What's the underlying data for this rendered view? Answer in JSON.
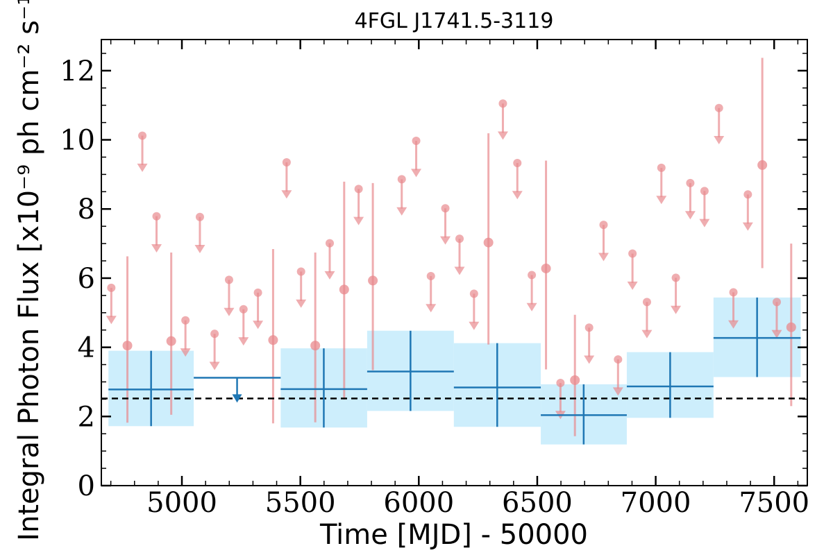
{
  "chart_data": {
    "type": "scatter",
    "title": "4FGL J1741.5-3119",
    "xlabel": "Time [MJD] - 50000",
    "ylabel": "Integral Photon Flux [x10⁻⁹ ph cm⁻² s⁻¹]",
    "xlim": [
      4660,
      7640
    ],
    "ylim": [
      0,
      12.9
    ],
    "x_ticks": [
      5000,
      5500,
      6000,
      6500,
      7000,
      7500
    ],
    "x_tick_labels": [
      "5000",
      "5500",
      "6000",
      "6500",
      "7000",
      "7500"
    ],
    "y_ticks": [
      0,
      2,
      4,
      6,
      8,
      10,
      12
    ],
    "y_tick_labels": [
      "0",
      "2",
      "4",
      "6",
      "8",
      "10",
      "12"
    ],
    "grid": false,
    "reference_line": {
      "y": 2.52,
      "style": "dashed",
      "color": "#000000"
    },
    "colors": {
      "fine": "#e88a8e",
      "coarse": "#1f77b4",
      "band": "#cdeefc"
    },
    "series": [
      {
        "bin": "fine",
        "upper_limits": [
          {
            "x": 4702,
            "y": 5.72
          },
          {
            "x": 4833,
            "y": 10.12
          },
          {
            "x": 4893,
            "y": 7.79
          },
          {
            "x": 5015,
            "y": 4.78
          },
          {
            "x": 5076,
            "y": 7.77
          },
          {
            "x": 5138,
            "y": 4.39
          },
          {
            "x": 5199,
            "y": 5.95
          },
          {
            "x": 5260,
            "y": 5.1
          },
          {
            "x": 5321,
            "y": 5.58
          },
          {
            "x": 5442,
            "y": 9.35
          },
          {
            "x": 5503,
            "y": 6.19
          },
          {
            "x": 5624,
            "y": 7.01
          },
          {
            "x": 5746,
            "y": 8.58
          },
          {
            "x": 5928,
            "y": 8.86
          },
          {
            "x": 5989,
            "y": 9.97
          },
          {
            "x": 6051,
            "y": 6.06
          },
          {
            "x": 6112,
            "y": 8.02
          },
          {
            "x": 6172,
            "y": 7.14
          },
          {
            "x": 6233,
            "y": 5.55
          },
          {
            "x": 6355,
            "y": 11.05
          },
          {
            "x": 6416,
            "y": 9.33
          },
          {
            "x": 6477,
            "y": 6.09
          },
          {
            "x": 6598,
            "y": 2.97
          },
          {
            "x": 6719,
            "y": 4.57
          },
          {
            "x": 6780,
            "y": 7.54
          },
          {
            "x": 6841,
            "y": 3.65
          },
          {
            "x": 6902,
            "y": 6.71
          },
          {
            "x": 6963,
            "y": 5.31
          },
          {
            "x": 7024,
            "y": 9.19
          },
          {
            "x": 7085,
            "y": 6.01
          },
          {
            "x": 7146,
            "y": 8.75
          },
          {
            "x": 7206,
            "y": 8.52
          },
          {
            "x": 7267,
            "y": 10.92
          },
          {
            "x": 7328,
            "y": 5.59
          },
          {
            "x": 7389,
            "y": 8.42
          },
          {
            "x": 7511,
            "y": 5.31
          }
        ],
        "points": [
          {
            "x": 4770,
            "y": 4.05,
            "lo": 1.82,
            "hi": 6.63
          },
          {
            "x": 4955,
            "y": 4.18,
            "lo": 2.05,
            "hi": 6.74
          },
          {
            "x": 5385,
            "y": 4.21,
            "lo": 1.8,
            "hi": 6.84
          },
          {
            "x": 5563,
            "y": 4.05,
            "lo": 1.83,
            "hi": 6.74
          },
          {
            "x": 5685,
            "y": 5.67,
            "lo": 2.49,
            "hi": 8.79
          },
          {
            "x": 5806,
            "y": 5.93,
            "lo": 3.34,
            "hi": 8.75
          },
          {
            "x": 6294,
            "y": 7.03,
            "lo": 4.08,
            "hi": 10.19
          },
          {
            "x": 6537,
            "y": 6.28,
            "lo": 3.36,
            "hi": 9.4
          },
          {
            "x": 6659,
            "y": 3.05,
            "lo": 1.43,
            "hi": 4.94
          },
          {
            "x": 7450,
            "y": 9.27,
            "lo": 6.29,
            "hi": 12.37
          },
          {
            "x": 7572,
            "y": 4.58,
            "lo": 2.3,
            "hi": 7.0
          }
        ]
      },
      {
        "bin": "coarse",
        "points": [
          {
            "x0": 4690,
            "x1": 5050,
            "x": 4870,
            "y": 2.78,
            "lo": 1.72,
            "hi": 3.9
          },
          {
            "x0": 5417,
            "x1": 5782,
            "x": 5599,
            "y": 2.79,
            "lo": 1.68,
            "hi": 3.97
          },
          {
            "x0": 5782,
            "x1": 6148,
            "x": 5965,
            "y": 3.3,
            "lo": 2.16,
            "hi": 4.48
          },
          {
            "x0": 6148,
            "x1": 6515,
            "x": 6331,
            "y": 2.84,
            "lo": 1.7,
            "hi": 4.12
          },
          {
            "x0": 6515,
            "x1": 6878,
            "x": 6696,
            "y": 2.04,
            "lo": 1.19,
            "hi": 2.93
          },
          {
            "x0": 6878,
            "x1": 7244,
            "x": 7061,
            "y": 2.87,
            "lo": 1.96,
            "hi": 3.86
          },
          {
            "x0": 7244,
            "x1": 7612,
            "x": 7428,
            "y": 4.27,
            "lo": 3.14,
            "hi": 5.44
          }
        ],
        "upper_limits": [
          {
            "x0": 5050,
            "x1": 5417,
            "x": 5233,
            "y": 3.12
          }
        ]
      }
    ]
  }
}
